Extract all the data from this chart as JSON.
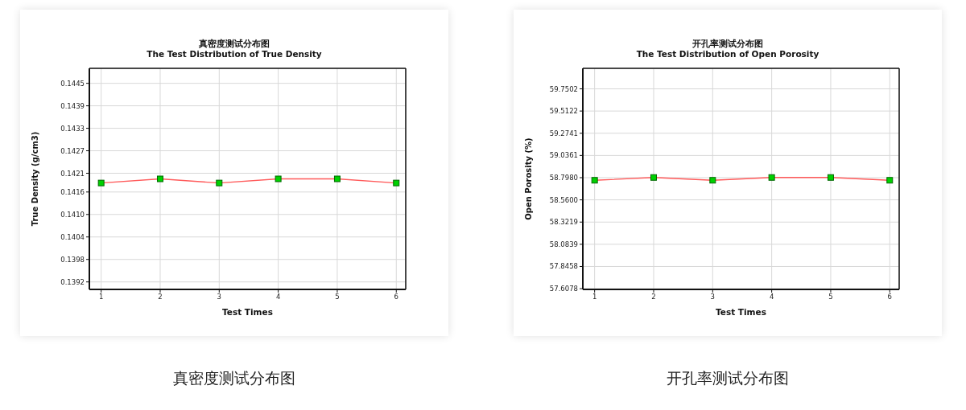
{
  "chart_data": [
    {
      "type": "line",
      "title": "真密度测试分布图",
      "subtitle": "The Test Distribution of True Density",
      "xlabel": "Test Times",
      "ylabel": "True Density (g/cm3)",
      "x": [
        1,
        2,
        3,
        4,
        5,
        6
      ],
      "series": [
        {
          "color": "#ff5a5a",
          "values": [
            0.14184,
            0.14195,
            0.14184,
            0.14195,
            0.14195,
            0.14184
          ]
        }
      ],
      "xlim": [
        0.8,
        6.16
      ],
      "xticks": [
        1,
        2,
        3,
        4,
        5,
        6
      ],
      "ylim": [
        0.139,
        0.1449
      ],
      "yticks": [
        {
          "value": 0.1392,
          "label": "0.1392"
        },
        {
          "value": 0.1398,
          "label": "0.1398"
        },
        {
          "value": 0.1404,
          "label": "0.1404"
        },
        {
          "value": 0.141,
          "label": "0.1410"
        },
        {
          "value": 0.1416,
          "label": "0.1416"
        },
        {
          "value": 0.1421,
          "label": "0.1421"
        },
        {
          "value": 0.1427,
          "label": "0.1427"
        },
        {
          "value": 0.1433,
          "label": "0.1433"
        },
        {
          "value": 0.1439,
          "label": "0.1439"
        },
        {
          "value": 0.1445,
          "label": "0.1445"
        }
      ],
      "grid": true,
      "marker": "square",
      "line_style": "solid",
      "legend": false,
      "annotations": [
        "真密度测试分布图"
      ]
    },
    {
      "type": "line",
      "title": "开孔率测试分布图",
      "subtitle": "The Test Distribution of Open Porosity",
      "xlabel": "Test Times",
      "ylabel": "Open Porosity (%)",
      "x": [
        1,
        2,
        3,
        4,
        5,
        6
      ],
      "series": [
        {
          "color": "#ff5a5a",
          "values": [
            58.77,
            58.8,
            58.77,
            58.8,
            58.8,
            58.77
          ]
        }
      ],
      "xlim": [
        0.8,
        6.16
      ],
      "xticks": [
        1,
        2,
        3,
        4,
        5,
        6
      ],
      "ylim": [
        57.6,
        59.97
      ],
      "yticks": [
        {
          "value": 57.6078,
          "label": "57.6078"
        },
        {
          "value": 57.8458,
          "label": "57.8458"
        },
        {
          "value": 58.0839,
          "label": "58.0839"
        },
        {
          "value": 58.3219,
          "label": "58.3219"
        },
        {
          "value": 58.56,
          "label": "58.5600"
        },
        {
          "value": 58.798,
          "label": "58.7980"
        },
        {
          "value": 59.0361,
          "label": "59.0361"
        },
        {
          "value": 59.2741,
          "label": "59.2741"
        },
        {
          "value": 59.5122,
          "label": "59.5122"
        },
        {
          "value": 59.7502,
          "label": "59.7502"
        }
      ],
      "grid": true,
      "marker": "square",
      "line_style": "solid",
      "legend": false,
      "annotations": [
        "开孔率测试分布图"
      ]
    }
  ]
}
